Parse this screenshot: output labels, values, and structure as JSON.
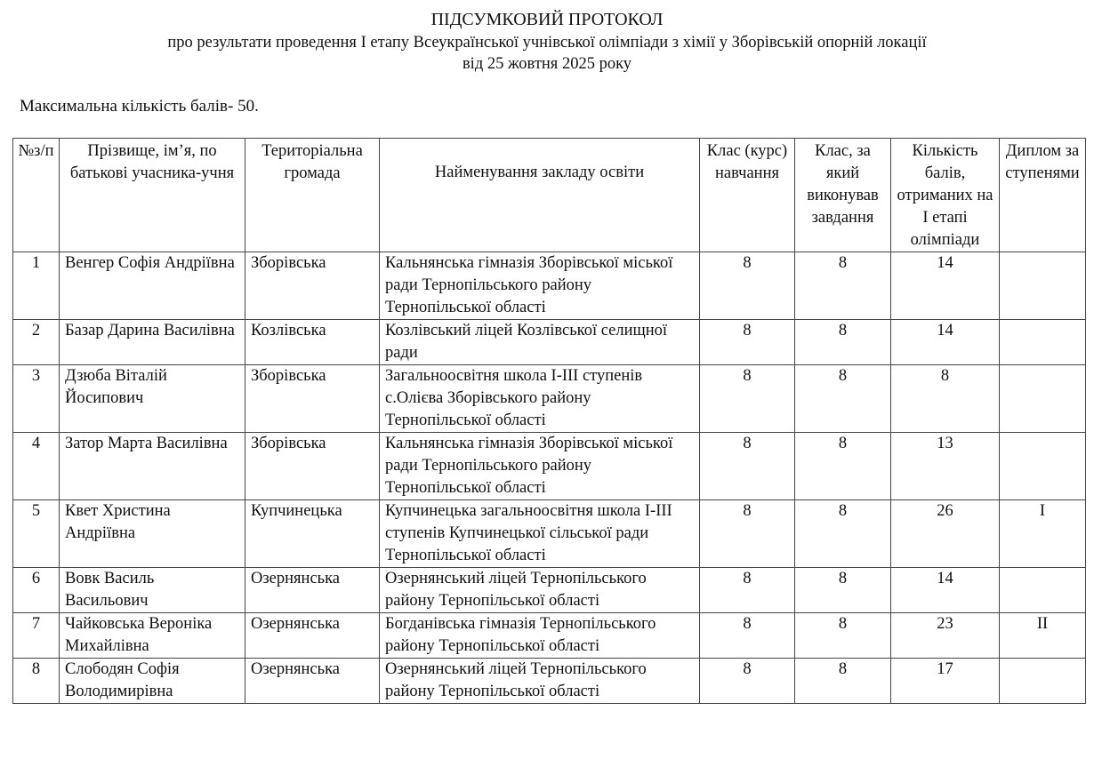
{
  "header": {
    "title": "ПІДСУМКОВИЙ ПРОТОКОЛ",
    "subtitle": "про результати проведення І етапу Всеукраїнської учнівської олімпіади з хімії у Зборівській опорній локації",
    "date": "від 25 жовтня 2025 року",
    "max_points": "Максимальна кількість балів- 50."
  },
  "table": {
    "columns": [
      "№з/п",
      "Прізвище, ім’я, по батькові учасника-учня",
      "Територіальна громада",
      "Найменування закладу освіти",
      "Клас (курс) навчання",
      "Клас, за який виконував завдання",
      "Кількість балів, отриманих на І етапі олімпіади",
      "Диплом за ступенями"
    ],
    "rows": [
      {
        "n": "1",
        "name": "Венгер Софія Андріївна",
        "community": "Зборівська",
        "school": "Кальнянська гімназія Зборівської міської ради Тернопільського району Тернопільської області",
        "grade": "8",
        "task_grade": "8",
        "score": "14",
        "diploma": ""
      },
      {
        "n": "2",
        "name": "Базар Дарина Василівна",
        "community": "Козлівська",
        "school": "Козлівський ліцей Козлівської селищної ради",
        "grade": "8",
        "task_grade": "8",
        "score": "14",
        "diploma": ""
      },
      {
        "n": "3",
        "name": "Дзюба Віталій Йосипович",
        "community": "Зборівська",
        "school": "Загальноосвітня школа І-ІІІ ступенів с.Олієва Зборівського району Тернопільської області",
        "grade": "8",
        "task_grade": "8",
        "score": "8",
        "diploma": ""
      },
      {
        "n": "4",
        "name": "Затор Марта Василівна",
        "community": "Зборівська",
        "school": "Кальнянська гімназія Зборівської міської ради Тернопільського району Тернопільської області",
        "grade": "8",
        "task_grade": "8",
        "score": "13",
        "diploma": ""
      },
      {
        "n": "5",
        "name": "Квет Христина Андріївна",
        "community": "Купчинецька",
        "school": "Купчинецька загальноосвітня школа І-ІІІ ступенів Купчинецької сільської ради Тернопільської області",
        "grade": "8",
        "task_grade": "8",
        "score": "26",
        "diploma": "І"
      },
      {
        "n": "6",
        "name": "Вовк Василь Васильович",
        "community": "Озернянська",
        "school": "Озернянський ліцей Тернопільського району Тернопільської області",
        "grade": "8",
        "task_grade": "8",
        "score": "14",
        "diploma": ""
      },
      {
        "n": "7",
        "name": "Чайковська Вероніка Михайлівна",
        "community": "Озернянська",
        "school": "Богданівська гімназія Тернопільського району Тернопільської області",
        "grade": "8",
        "task_grade": "8",
        "score": "23",
        "diploma": "ІІ"
      },
      {
        "n": "8",
        "name": "Слободян Софія Володимирівна",
        "community": "Озернянська",
        "school": "Озернянський ліцей Тернопільського району Тернопільської області",
        "grade": "8",
        "task_grade": "8",
        "score": "17",
        "diploma": ""
      }
    ]
  }
}
